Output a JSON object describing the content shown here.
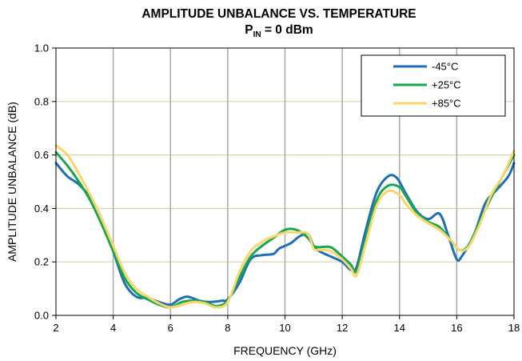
{
  "chart_data": {
    "type": "line",
    "title": "AMPLITUDE UNBALANCE VS. TEMPERATURE",
    "subtitle": {
      "prefix": "P",
      "subscript": "IN",
      "suffix": " = 0 dBm"
    },
    "xlabel": "FREQUENCY (GHz)",
    "ylabel": "AMPLITUDE UNBALANCE (dB)",
    "xlim": [
      2,
      18
    ],
    "ylim": [
      0,
      1
    ],
    "xticks": [
      2,
      4,
      6,
      8,
      10,
      12,
      14,
      16,
      18
    ],
    "xtick_labels": [
      "2",
      "4",
      "6",
      "8",
      "10",
      "12",
      "14",
      "16",
      "18"
    ],
    "yticks": [
      0,
      0.2,
      0.4,
      0.6,
      0.8,
      1.0
    ],
    "ytick_labels": [
      "0.0",
      "0.2",
      "0.4",
      "0.6",
      "0.8",
      "1.0"
    ],
    "grid": {
      "vertical": true,
      "horizontal": true
    },
    "legend_position": "top-right",
    "colors": {
      "vertical_grid": "#aaaaaa",
      "horizontal_grid": "#d8d4b0",
      "axis": "#000000"
    },
    "series": [
      {
        "name": "-45°C",
        "color": "#1f6fb5",
        "x": [
          2.0,
          2.4,
          2.8,
          3.2,
          3.6,
          4.0,
          4.4,
          4.8,
          5.2,
          5.6,
          6.0,
          6.3,
          6.6,
          7.0,
          7.4,
          7.8,
          8.0,
          8.4,
          8.8,
          9.2,
          9.6,
          9.8,
          10.2,
          10.5,
          10.8,
          11.0,
          11.2,
          11.6,
          12.0,
          12.3,
          12.5,
          12.8,
          13.2,
          13.6,
          13.9,
          14.2,
          14.6,
          15.0,
          15.4,
          15.7,
          16.0,
          16.2,
          16.6,
          17.0,
          17.4,
          17.8,
          18.0
        ],
        "y": [
          0.57,
          0.52,
          0.49,
          0.44,
          0.36,
          0.24,
          0.12,
          0.07,
          0.065,
          0.05,
          0.04,
          0.06,
          0.07,
          0.055,
          0.05,
          0.055,
          0.06,
          0.12,
          0.21,
          0.225,
          0.23,
          0.25,
          0.27,
          0.295,
          0.305,
          0.26,
          0.24,
          0.22,
          0.2,
          0.17,
          0.18,
          0.31,
          0.46,
          0.52,
          0.515,
          0.46,
          0.39,
          0.36,
          0.38,
          0.3,
          0.21,
          0.225,
          0.3,
          0.42,
          0.47,
          0.52,
          0.57
        ]
      },
      {
        "name": "+25°C",
        "color": "#19a64f",
        "x": [
          2.0,
          2.4,
          2.8,
          3.2,
          3.6,
          4.0,
          4.4,
          4.8,
          5.2,
          5.6,
          6.0,
          6.4,
          6.8,
          7.2,
          7.6,
          8.0,
          8.4,
          8.8,
          9.2,
          9.6,
          10.0,
          10.4,
          10.8,
          11.0,
          11.2,
          11.6,
          12.0,
          12.3,
          12.5,
          12.8,
          13.2,
          13.6,
          14.0,
          14.2,
          14.6,
          15.0,
          15.4,
          15.8,
          16.1,
          16.4,
          16.8,
          17.2,
          17.6,
          18.0
        ],
        "y": [
          0.61,
          0.56,
          0.5,
          0.43,
          0.34,
          0.24,
          0.14,
          0.085,
          0.06,
          0.04,
          0.03,
          0.05,
          0.055,
          0.05,
          0.035,
          0.055,
          0.14,
          0.22,
          0.26,
          0.29,
          0.32,
          0.32,
          0.29,
          0.26,
          0.255,
          0.255,
          0.22,
          0.19,
          0.165,
          0.28,
          0.43,
          0.485,
          0.48,
          0.45,
          0.385,
          0.35,
          0.33,
          0.28,
          0.245,
          0.26,
          0.35,
          0.44,
          0.52,
          0.6
        ]
      },
      {
        "name": "+85°C",
        "color": "#f7d66a",
        "x": [
          2.0,
          2.4,
          2.8,
          3.2,
          3.6,
          4.0,
          4.4,
          4.8,
          5.2,
          5.6,
          6.0,
          6.4,
          6.8,
          7.2,
          7.6,
          8.0,
          8.4,
          8.8,
          9.2,
          9.6,
          10.0,
          10.4,
          10.8,
          11.0,
          11.2,
          11.6,
          12.0,
          12.3,
          12.5,
          12.8,
          13.2,
          13.6,
          14.0,
          14.2,
          14.6,
          15.0,
          15.4,
          15.8,
          16.1,
          16.4,
          16.8,
          17.2,
          17.6,
          18.0
        ],
        "y": [
          0.635,
          0.6,
          0.53,
          0.45,
          0.36,
          0.26,
          0.16,
          0.1,
          0.07,
          0.045,
          0.03,
          0.04,
          0.05,
          0.045,
          0.03,
          0.05,
          0.16,
          0.24,
          0.275,
          0.295,
          0.31,
          0.31,
          0.305,
          0.25,
          0.245,
          0.24,
          0.21,
          0.175,
          0.15,
          0.26,
          0.41,
          0.465,
          0.45,
          0.42,
          0.375,
          0.345,
          0.32,
          0.28,
          0.245,
          0.255,
          0.34,
          0.45,
          0.52,
          0.615
        ]
      }
    ]
  }
}
